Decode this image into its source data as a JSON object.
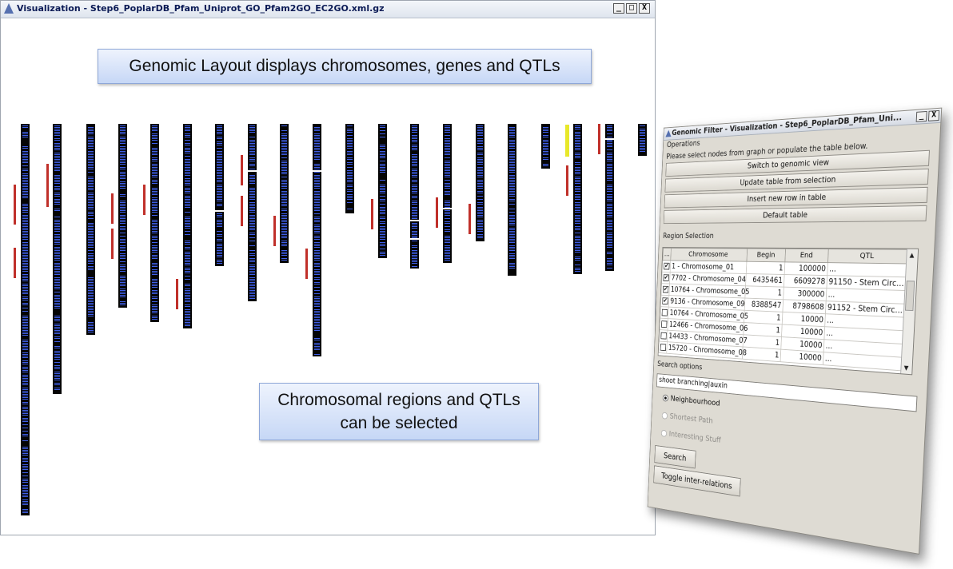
{
  "main_window": {
    "title": "Visualization - Step6_PoplarDB_Pfam_Uniprot_GO_Pfam2GO_EC2GO.xml.gz",
    "controls": {
      "minimize": "_",
      "maximize": "□",
      "close": "X"
    }
  },
  "callouts": {
    "layout": "Genomic Layout displays chromosomes, genes and QTLs",
    "regions_line1": "Chromosomal regions and QTLs",
    "regions_line2": "can be selected"
  },
  "colors": {
    "chromosome": "#050505",
    "gene": "#3f5fe8",
    "qtl": "#c0302a",
    "highlight": "#e8e82a"
  },
  "filter_window": {
    "title": "Genomic Filter - Visualization - Step6_PoplarDB_Pfam_Uni...",
    "operations_label": "Operations",
    "hint": "Please select nodes from graph or populate the table below.",
    "buttons": {
      "switch": "Switch to genomic view",
      "update": "Update table from selection",
      "insert": "Insert new row in table",
      "default": "Default table"
    },
    "region_label": "Region Selection",
    "columns": [
      "...",
      "Chromosome",
      "Begin",
      "End",
      "QTL"
    ],
    "rows": [
      {
        "checked": true,
        "chromosome": "1 - Chromosome_01",
        "begin": "1",
        "end": "100000",
        "qtl": "..."
      },
      {
        "checked": true,
        "chromosome": "7702 - Chromosome_04",
        "begin": "6435461",
        "end": "6609278",
        "qtl": "91150 - Stem Circ..."
      },
      {
        "checked": true,
        "chromosome": "10764 - Chromosome_05",
        "begin": "1",
        "end": "300000",
        "qtl": "..."
      },
      {
        "checked": true,
        "chromosome": "9136 - Chromosome_09",
        "begin": "8388547",
        "end": "8798608",
        "qtl": "91152 - Stem Circ..."
      },
      {
        "checked": false,
        "chromosome": "10764 - Chromosome_05",
        "begin": "1",
        "end": "10000",
        "qtl": "..."
      },
      {
        "checked": false,
        "chromosome": "12466 - Chromosome_06",
        "begin": "1",
        "end": "10000",
        "qtl": "..."
      },
      {
        "checked": false,
        "chromosome": "14433 - Chromosome_07",
        "begin": "1",
        "end": "10000",
        "qtl": "..."
      },
      {
        "checked": false,
        "chromosome": "15720 - Chromosome_08",
        "begin": "1",
        "end": "10000",
        "qtl": "..."
      }
    ],
    "search_label": "Search options",
    "search_value": "shoot branching|auxin",
    "options": {
      "neighbourhood": "Neighbourhood",
      "shortest_path": "Shortest Path",
      "interesting": "Interesting Stuff"
    },
    "selected_option": "neighbourhood",
    "search_button": "Search",
    "toggle_button": "Toggle inter-relations"
  }
}
